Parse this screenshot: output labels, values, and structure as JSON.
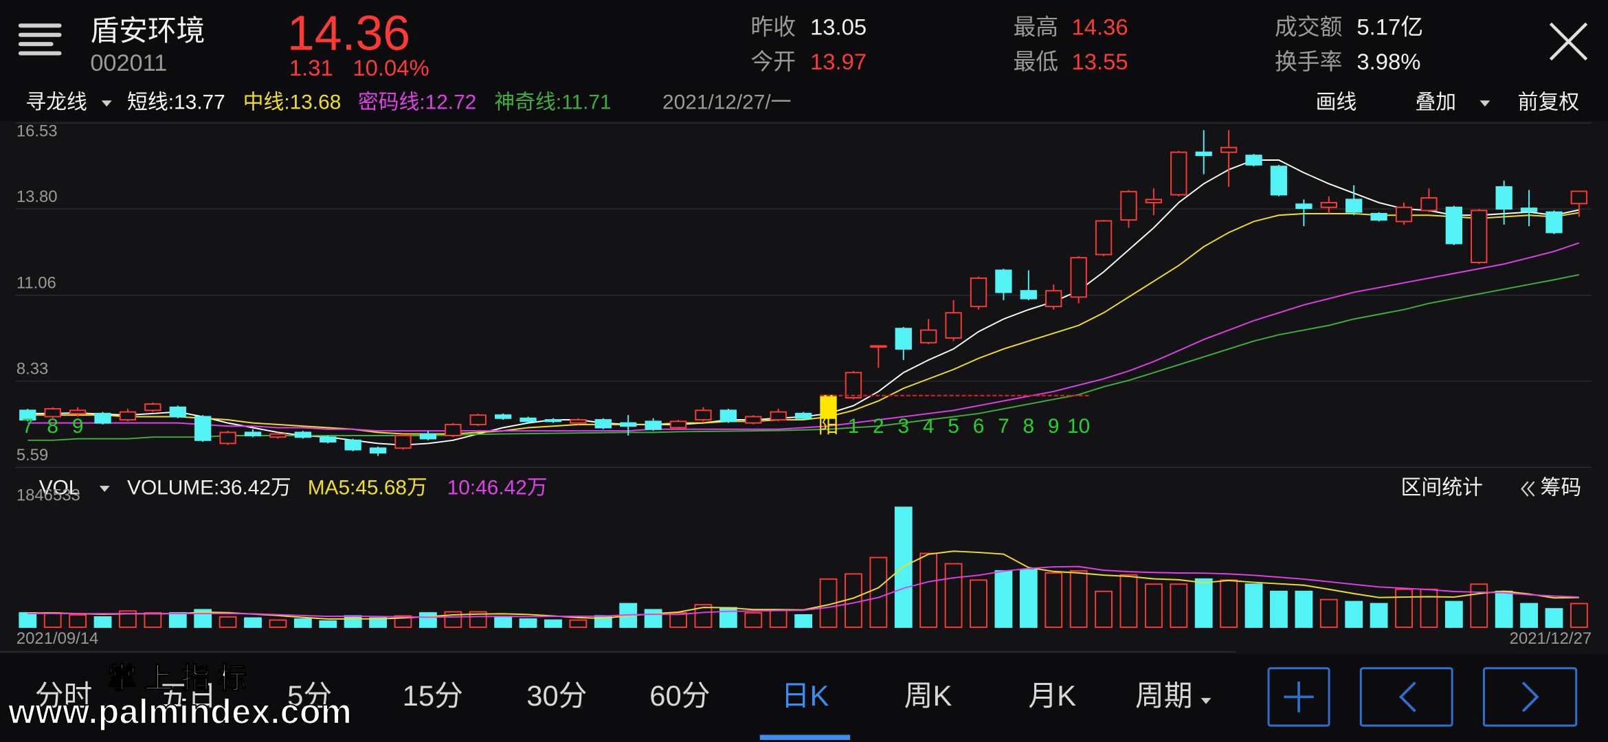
{
  "header": {
    "name": "盾安环境",
    "code": "002011",
    "price": "14.36",
    "change": "1.31",
    "change_pct": "10.04%",
    "stats": [
      {
        "label": "昨收",
        "value": "13.05"
      },
      {
        "label": "今开",
        "value": "13.97"
      },
      {
        "label": "最高",
        "value": "14.36"
      },
      {
        "label": "最低",
        "value": "13.55"
      },
      {
        "label": "成交额",
        "value": "5.17亿"
      },
      {
        "label": "换手率",
        "value": "3.98%"
      }
    ]
  },
  "indicator_bar": {
    "selector": "寻龙线",
    "date": "2021/12/27/一",
    "tools": [
      "画线",
      "叠加",
      "前复权"
    ]
  },
  "volume_bar": {
    "selector": "VOL",
    "tools": [
      "区间统计",
      "筹码"
    ]
  },
  "chart_data": [
    {
      "type": "candlestick",
      "legend_separator": ":",
      "ylim": [
        5.59,
        16.53
      ],
      "yticks": [
        16.53,
        {
          "value": 13.8,
          "label": "13.80"
        },
        11.06,
        8.33,
        5.59
      ],
      "grid": true,
      "up_color": "#ff3a36",
      "down_color": "#52f2f5",
      "highlight_index": 32,
      "highlight_color": "#ffe600",
      "open": [
        7.4,
        7.2,
        7.3,
        7.3,
        7.1,
        7.4,
        7.5,
        7.2,
        6.35,
        6.7,
        6.55,
        6.7,
        6.55,
        6.45,
        6.2,
        6.2,
        6.65,
        6.6,
        6.95,
        7.25,
        7.15,
        7.1,
        7.0,
        7.1,
        7.0,
        7.05,
        6.85,
        7.1,
        7.4,
        7.0,
        7.1,
        7.3,
        7.15,
        7.8,
        9.45,
        10.0,
        9.55,
        9.7,
        10.7,
        11.85,
        11.2,
        10.7,
        11.0,
        12.35,
        13.45,
        14.0,
        14.25,
        15.6,
        15.6,
        15.5,
        15.15,
        13.95,
        13.85,
        14.1,
        13.65,
        13.4,
        13.75,
        13.85,
        12.1,
        14.5,
        13.82,
        13.7,
        13.97
      ],
      "high": [
        7.45,
        7.5,
        7.5,
        7.35,
        7.45,
        7.65,
        7.55,
        7.25,
        6.75,
        6.8,
        6.7,
        6.75,
        6.6,
        6.5,
        6.25,
        6.65,
        6.75,
        7.0,
        7.3,
        7.3,
        7.2,
        7.15,
        7.15,
        7.15,
        7.25,
        7.15,
        7.1,
        7.5,
        7.45,
        7.25,
        7.45,
        7.35,
        7.87,
        8.65,
        9.45,
        10.05,
        10.3,
        10.9,
        11.65,
        11.9,
        11.85,
        11.4,
        12.3,
        13.45,
        14.4,
        14.45,
        15.65,
        16.3,
        16.3,
        15.55,
        15.2,
        14.1,
        14.2,
        14.55,
        13.7,
        14.0,
        14.45,
        13.9,
        13.8,
        14.7,
        14.4,
        13.75,
        14.36
      ],
      "low": [
        7.05,
        7.15,
        7.2,
        6.95,
        7.05,
        7.35,
        7.15,
        6.4,
        6.3,
        6.55,
        6.5,
        6.5,
        6.35,
        6.1,
        5.95,
        6.15,
        6.45,
        6.55,
        6.9,
        7.1,
        7.0,
        7.0,
        6.95,
        6.8,
        6.6,
        6.75,
        6.8,
        7.05,
        7.0,
        6.95,
        7.05,
        7.1,
        7.1,
        7.75,
        8.75,
        9.0,
        9.5,
        9.6,
        10.6,
        10.9,
        10.9,
        10.6,
        10.8,
        12.3,
        13.2,
        13.6,
        14.2,
        14.9,
        14.5,
        15.15,
        14.2,
        13.25,
        13.65,
        13.6,
        13.4,
        13.3,
        13.7,
        12.65,
        12.05,
        13.3,
        13.25,
        13.0,
        13.55
      ],
      "close": [
        7.1,
        7.45,
        7.4,
        7.0,
        7.35,
        7.6,
        7.2,
        6.45,
        6.7,
        6.6,
        6.65,
        6.55,
        6.4,
        6.15,
        6.05,
        6.6,
        6.5,
        6.95,
        7.25,
        7.15,
        7.05,
        7.05,
        7.1,
        6.85,
        6.9,
        6.8,
        7.05,
        7.4,
        7.05,
        7.2,
        7.35,
        7.15,
        7.87,
        8.6,
        9.45,
        9.35,
        9.95,
        10.5,
        11.6,
        11.15,
        10.95,
        11.2,
        12.25,
        13.42,
        14.35,
        14.1,
        15.6,
        15.5,
        15.75,
        15.2,
        14.25,
        13.82,
        14.0,
        13.7,
        13.45,
        13.85,
        14.15,
        12.7,
        13.75,
        13.8,
        13.72,
        13.05,
        14.36
      ],
      "series": [
        {
          "name": "短线",
          "color": "#ffffff",
          "values": [
            7.3,
            7.3,
            7.32,
            7.28,
            7.25,
            7.3,
            7.35,
            7.2,
            7.0,
            6.85,
            6.7,
            6.6,
            6.55,
            6.45,
            6.35,
            6.3,
            6.35,
            6.45,
            6.65,
            6.85,
            7.0,
            7.1,
            7.1,
            7.0,
            6.95,
            6.95,
            6.95,
            7.0,
            7.1,
            7.1,
            7.15,
            7.2,
            7.3,
            7.55,
            8.0,
            8.6,
            9.0,
            9.35,
            9.9,
            10.3,
            10.6,
            10.85,
            11.2,
            11.8,
            12.5,
            13.2,
            14.0,
            14.6,
            15.05,
            15.35,
            15.35,
            14.95,
            14.6,
            14.3,
            14.0,
            13.8,
            13.75,
            13.6,
            13.6,
            13.65,
            13.7,
            13.6,
            13.77
          ]
        },
        {
          "name": "中线",
          "color": "#f0e020",
          "values": [
            7.25,
            7.25,
            7.25,
            7.25,
            7.2,
            7.2,
            7.2,
            7.15,
            7.1,
            7.0,
            6.95,
            6.9,
            6.85,
            6.8,
            6.7,
            6.65,
            6.65,
            6.65,
            6.7,
            6.75,
            6.85,
            6.9,
            6.95,
            6.95,
            6.95,
            6.95,
            7.0,
            7.0,
            7.05,
            7.05,
            7.1,
            7.1,
            7.2,
            7.4,
            7.7,
            8.1,
            8.4,
            8.7,
            9.05,
            9.35,
            9.6,
            9.85,
            10.1,
            10.5,
            11.0,
            11.5,
            12.0,
            12.6,
            13.05,
            13.4,
            13.6,
            13.65,
            13.65,
            13.65,
            13.6,
            13.6,
            13.6,
            13.55,
            13.5,
            13.55,
            13.6,
            13.55,
            13.68
          ]
        },
        {
          "name": "密码线",
          "color": "#e040ea",
          "values": [
            7.0,
            7.0,
            7.0,
            7.0,
            7.0,
            7.0,
            7.0,
            6.95,
            6.9,
            6.9,
            6.85,
            6.85,
            6.8,
            6.8,
            6.75,
            6.75,
            6.75,
            6.75,
            6.75,
            6.75,
            6.75,
            6.75,
            6.75,
            6.75,
            6.75,
            6.8,
            6.8,
            6.8,
            6.8,
            6.8,
            6.8,
            6.85,
            6.9,
            7.0,
            7.1,
            7.2,
            7.3,
            7.4,
            7.55,
            7.7,
            7.85,
            8.0,
            8.2,
            8.4,
            8.65,
            8.95,
            9.3,
            9.65,
            9.95,
            10.25,
            10.5,
            10.75,
            10.95,
            11.15,
            11.3,
            11.45,
            11.6,
            11.75,
            11.9,
            12.05,
            12.25,
            12.45,
            12.72
          ]
        },
        {
          "name": "神奇线",
          "color": "#3fae3f",
          "values": [
            6.45,
            6.45,
            6.5,
            6.5,
            6.5,
            6.55,
            6.55,
            6.55,
            6.6,
            6.6,
            6.6,
            6.6,
            6.6,
            6.6,
            6.6,
            6.6,
            6.6,
            6.62,
            6.64,
            6.65,
            6.66,
            6.67,
            6.68,
            6.69,
            6.7,
            6.7,
            6.72,
            6.73,
            6.74,
            6.75,
            6.76,
            6.78,
            6.8,
            6.85,
            6.9,
            7.0,
            7.1,
            7.2,
            7.3,
            7.45,
            7.6,
            7.75,
            7.9,
            8.15,
            8.35,
            8.6,
            8.85,
            9.1,
            9.35,
            9.6,
            9.8,
            9.95,
            10.1,
            10.3,
            10.45,
            10.6,
            10.8,
            10.95,
            11.1,
            11.25,
            11.4,
            11.55,
            11.71
          ]
        }
      ],
      "count_labels": [
        "7",
        "8",
        "9",
        null,
        null,
        null,
        null,
        null,
        null,
        null,
        null,
        null,
        null,
        null,
        null,
        null,
        null,
        null,
        null,
        null,
        null,
        null,
        null,
        null,
        null,
        null,
        null,
        null,
        null,
        null,
        null,
        null,
        "阳",
        "1",
        "2",
        "3",
        "4",
        "5",
        "6",
        "7",
        "8",
        "9",
        "10",
        null,
        null,
        null,
        null,
        null,
        null,
        null,
        null,
        null,
        null,
        null,
        null,
        null,
        null,
        null,
        null,
        null,
        null,
        null,
        null
      ],
      "count_color": "#22d42a",
      "reference_line": {
        "value": 7.87,
        "from": 32,
        "to": 42,
        "color": "#d42020"
      }
    },
    {
      "type": "bar",
      "legend_separator": ":",
      "ylim": [
        0,
        1846533
      ],
      "yticks": [
        1846533
      ],
      "categories": [
        "2021/09/14",
        null,
        null,
        null,
        null,
        null,
        null,
        null,
        null,
        null,
        null,
        null,
        null,
        null,
        null,
        null,
        null,
        null,
        null,
        null,
        null,
        null,
        null,
        null,
        null,
        null,
        null,
        null,
        null,
        null,
        null,
        null,
        null,
        null,
        null,
        null,
        null,
        null,
        null,
        null,
        null,
        null,
        null,
        null,
        null,
        null,
        null,
        null,
        null,
        null,
        null,
        null,
        null,
        null,
        null,
        null,
        null,
        null,
        null,
        null,
        null,
        null,
        "2021/12/27"
      ],
      "series": [
        {
          "name": "VOLUME",
          "type": "bar",
          "color": "#f2f2f2",
          "up_color": "#ff3a36",
          "down_color": "#52f2f5",
          "values": [
            221000,
            221000,
            190000,
            158000,
            250000,
            221000,
            221000,
            270000,
            158000,
            142000,
            110000,
            126000,
            95000,
            175000,
            142000,
            175000,
            221000,
            237000,
            237000,
            158000,
            126000,
            110000,
            110000,
            175000,
            363000,
            270000,
            221000,
            347000,
            300000,
            221000,
            270000,
            190000,
            742000,
            821000,
            1073000,
            1846533,
            1136000,
            978000,
            726000,
            868000,
            884000,
            836000,
            868000,
            552000,
            805000,
            663000,
            663000,
            742000,
            726000,
            663000,
            552000,
            552000,
            426000,
            395000,
            363000,
            584000,
            584000,
            395000,
            663000,
            552000,
            363000,
            284000,
            364200
          ],
          "value_labels": [
            null,
            null,
            null,
            null,
            null,
            null,
            null,
            null,
            null,
            null,
            null,
            null,
            null,
            null,
            null,
            null,
            null,
            null,
            null,
            null,
            null,
            null,
            null,
            null,
            null,
            null,
            null,
            null,
            null,
            null,
            null,
            null,
            null,
            null,
            null,
            null,
            null,
            null,
            null,
            null,
            null,
            null,
            null,
            null,
            null,
            null,
            null,
            null,
            null,
            null,
            null,
            null,
            null,
            null,
            null,
            null,
            null,
            null,
            null,
            null,
            null,
            null,
            "36.42万"
          ]
        },
        {
          "name": "MA5",
          "type": "line",
          "color": "#f0e020",
          "values": [
            220000,
            220000,
            210000,
            200000,
            208000,
            208000,
            208000,
            232000,
            224000,
            202000,
            180000,
            151000,
            126000,
            130000,
            128000,
            143000,
            162000,
            190000,
            202000,
            206000,
            196000,
            173000,
            148000,
            136000,
            177000,
            206000,
            232000,
            304000,
            300000,
            272000,
            272000,
            266000,
            345000,
            449000,
            607000,
            936000,
            1124000,
            1171000,
            1152000,
            1126000,
            918000,
            858000,
            836000,
            802000,
            783000,
            745000,
            731000,
            686000,
            720000,
            691000,
            669000,
            647000,
            584000,
            518000,
            458000,
            464000,
            470000,
            464000,
            518000,
            556000,
            511000,
            451000,
            456800
          ],
          "value_labels": [
            null,
            null,
            null,
            null,
            null,
            null,
            null,
            null,
            null,
            null,
            null,
            null,
            null,
            null,
            null,
            null,
            null,
            null,
            null,
            null,
            null,
            null,
            null,
            null,
            null,
            null,
            null,
            null,
            null,
            null,
            null,
            null,
            null,
            null,
            null,
            null,
            null,
            null,
            null,
            null,
            null,
            null,
            null,
            null,
            null,
            null,
            null,
            null,
            null,
            null,
            null,
            null,
            null,
            null,
            null,
            null,
            null,
            null,
            null,
            null,
            null,
            null,
            "45.68万"
          ]
        },
        {
          "name": "10",
          "type": "line",
          "color": "#e040ea",
          "values": [
            210000,
            210000,
            210000,
            210000,
            210000,
            210000,
            210000,
            210000,
            210000,
            206000,
            194000,
            180000,
            167000,
            170000,
            165000,
            160000,
            155000,
            158000,
            164000,
            168000,
            163000,
            168000,
            169000,
            170000,
            190000,
            200000,
            195000,
            227000,
            245000,
            250000,
            257000,
            260000,
            306000,
            374000,
            457000,
            600000,
            700000,
            760000,
            800000,
            864000,
            905000,
            930000,
            935000,
            878000,
            855000,
            842000,
            835000,
            834000,
            820000,
            800000,
            770000,
            740000,
            700000,
            660000,
            620000,
            600000,
            580000,
            550000,
            540000,
            530000,
            500000,
            480000,
            464200
          ],
          "value_labels": [
            null,
            null,
            null,
            null,
            null,
            null,
            null,
            null,
            null,
            null,
            null,
            null,
            null,
            null,
            null,
            null,
            null,
            null,
            null,
            null,
            null,
            null,
            null,
            null,
            null,
            null,
            null,
            null,
            null,
            null,
            null,
            null,
            null,
            null,
            null,
            null,
            null,
            null,
            null,
            null,
            null,
            null,
            null,
            null,
            null,
            null,
            null,
            null,
            null,
            null,
            null,
            null,
            null,
            null,
            null,
            null,
            null,
            null,
            null,
            null,
            null,
            null,
            "46.42万"
          ]
        }
      ]
    }
  ],
  "tabs": {
    "items": [
      "分时",
      "五日",
      "5分",
      "15分",
      "30分",
      "60分",
      "日K",
      "周K",
      "月K",
      "周期"
    ],
    "active": 6
  },
  "watermark": {
    "title": "掌 上 指 标",
    "url": "www.palmindex.com"
  }
}
